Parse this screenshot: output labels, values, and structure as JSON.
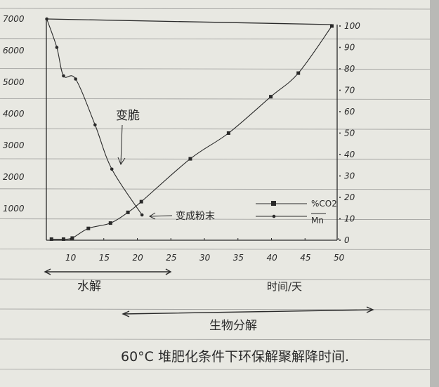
{
  "chart_data": {
    "type": "line",
    "title": "",
    "caption": "60°C 堆肥化条件下环保解聚解降时间.",
    "xlabel": "时间/天",
    "ylabel_left": "",
    "ylabel_right": "",
    "x_ticks": [
      "10",
      "15",
      "20",
      "25",
      "30",
      "35",
      "40",
      "45",
      "50"
    ],
    "y_left_ticks": [
      "1000",
      "2000",
      "3000",
      "4000",
      "5000",
      "6000",
      "7000"
    ],
    "y_right_ticks": [
      "0",
      "10",
      "20",
      "30",
      "40",
      "50",
      "60",
      "70",
      "80",
      "90",
      "100"
    ],
    "xlim": [
      6.5,
      50
    ],
    "ylim_left": [
      0,
      7000
    ],
    "ylim_right": [
      0,
      100
    ],
    "grid": false,
    "legend_position": "bottom-right",
    "series": [
      {
        "name": "Mn",
        "axis": "left",
        "marker": "dot",
        "x": [
          6.5,
          8,
          9,
          10.8,
          13.7,
          16.2,
          20.7
        ],
        "y": [
          7000,
          6100,
          5200,
          5100,
          3650,
          2250,
          800
        ]
      },
      {
        "name": "%CO2",
        "axis": "right",
        "marker": "square",
        "x": [
          7.2,
          9,
          10.3,
          12.7,
          16,
          18.6,
          20.6,
          27.9,
          33.6,
          39.9,
          44,
          49
        ],
        "y": [
          0.5,
          0.5,
          1,
          5.5,
          8,
          13,
          18,
          38,
          50,
          67,
          78,
          100
        ]
      }
    ],
    "annotations": {
      "brittle": "变脆",
      "powder": "变成粉末",
      "hydrolysis": "水解",
      "biodegradation": "生物分解"
    },
    "colors": {
      "ink": "#2a2a2a",
      "paper": "#e8e8e2",
      "rule": "#9a9a98"
    }
  }
}
